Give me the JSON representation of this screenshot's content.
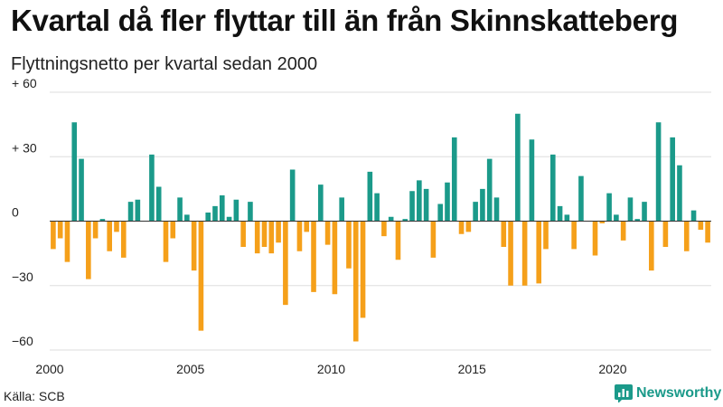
{
  "header": {
    "title": "Kvartal då fler flyttar till än från Skinnskatteberg",
    "subtitle": "Flyttningsnetto per kvartal sedan 2000"
  },
  "footer": {
    "source": "Källa: SCB",
    "brand": "Newsworthy"
  },
  "colors": {
    "positive": "#1b9a8a",
    "negative": "#f5a01a",
    "grid": "#dddddd"
  },
  "chart_data": {
    "type": "bar",
    "title": "Kvartal då fler flyttar till än från Skinnskatteberg",
    "subtitle": "Flyttningsnetto per kvartal sedan 2000",
    "xlabel": "",
    "ylabel": "",
    "ylim": [
      -60,
      60
    ],
    "yticks": [
      -60,
      -30,
      0,
      30,
      60
    ],
    "ytick_labels": [
      "−60",
      "−30",
      "0",
      "+ 30",
      "+ 60"
    ],
    "x_start": "2000 Q1",
    "xticks": [
      "2000",
      "2005",
      "2010",
      "2015",
      "2020"
    ],
    "grid": true,
    "values": [
      -13,
      -8,
      -19,
      46,
      29,
      -27,
      -8,
      1,
      -14,
      -5,
      -17,
      9,
      10,
      0,
      31,
      16,
      -19,
      -8,
      11,
      3,
      -23,
      -51,
      4,
      7,
      12,
      2,
      10,
      -12,
      9,
      -15,
      -12,
      -15,
      -10,
      -39,
      24,
      -14,
      -5,
      -33,
      17,
      -11,
      -34,
      11,
      -22,
      -56,
      -45,
      23,
      13,
      -7,
      2,
      -18,
      1,
      14,
      19,
      15,
      -17,
      8,
      18,
      39,
      -6,
      -5,
      9,
      15,
      29,
      11,
      -12,
      -30,
      50,
      -30,
      38,
      -29,
      -13,
      31,
      7,
      3,
      -13,
      21,
      0,
      -16,
      -1,
      13,
      3,
      -9,
      11,
      1,
      9,
      -23,
      46,
      -12,
      39,
      26,
      -14,
      5,
      -4,
      -10
    ]
  }
}
